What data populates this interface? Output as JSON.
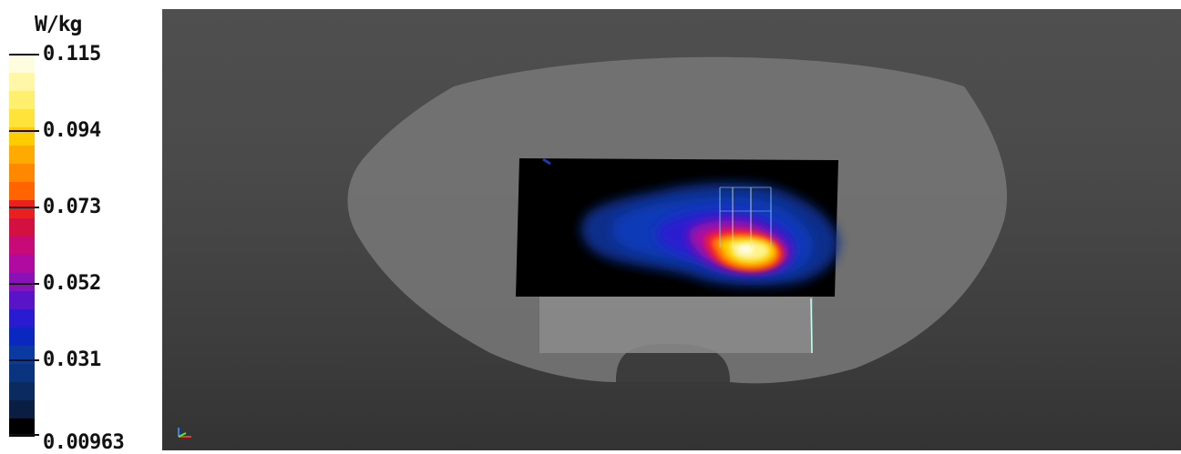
{
  "legend": {
    "unit": "W/kg",
    "ticks": [
      "0.115",
      "0.094",
      "0.073",
      "0.052",
      "0.031",
      "0.00963"
    ],
    "swatch_colors": [
      "#fffde0",
      "#fff6a8",
      "#ffef6e",
      "#ffe23a",
      "#ffcc00",
      "#ffaa00",
      "#ff8800",
      "#ff6400",
      "#ea2020",
      "#d41040",
      "#c80a78",
      "#b00aa0",
      "#8a10b8",
      "#5a14c8",
      "#2a1ad0",
      "#0a28c0",
      "#0a3aa0",
      "#0a3480",
      "#0a2a60",
      "#0a1e44",
      "#000000"
    ]
  },
  "viewport": {
    "phantom_color": "#767676",
    "axis_colors": {
      "x": "#ff3030",
      "y": "#30ff30",
      "z": "#3080ff"
    }
  }
}
